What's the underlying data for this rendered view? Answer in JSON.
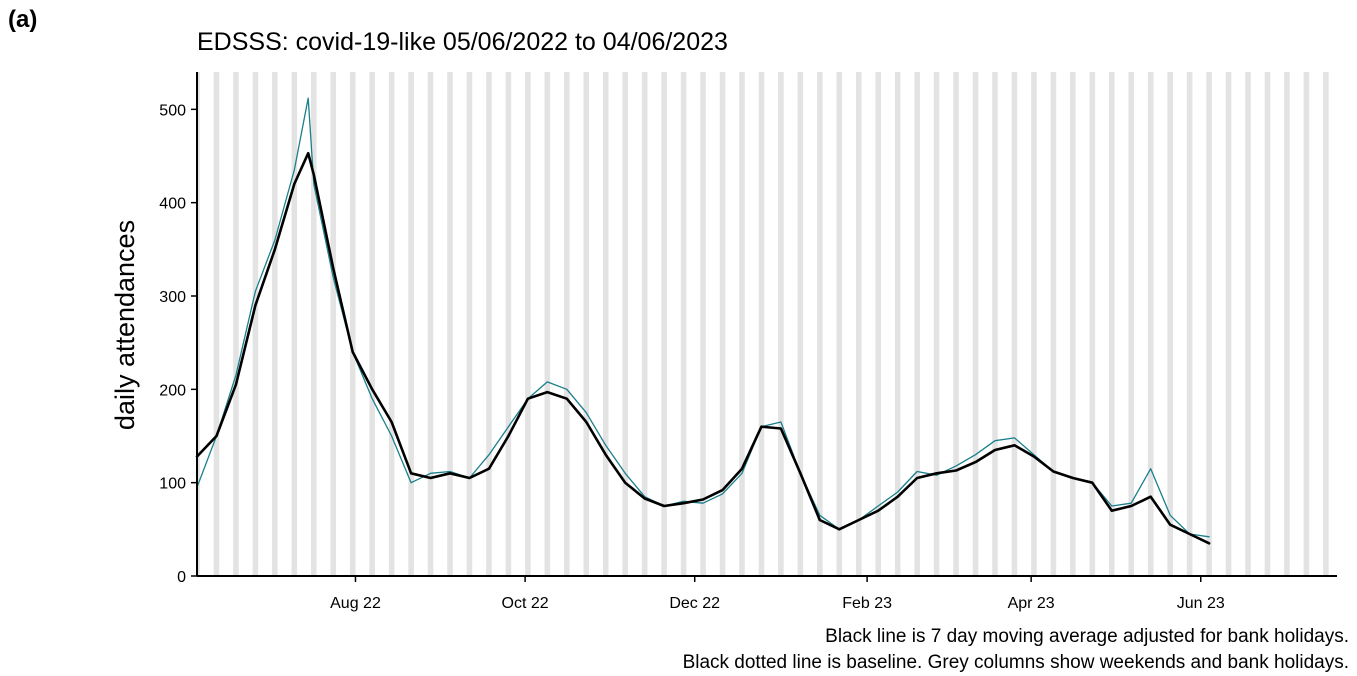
{
  "panel_label": "(a)",
  "caption": {
    "line1": "Black line is 7 day moving average adjusted for bank holidays.",
    "line2": "Black dotted line is baseline. Grey columns show weekends and bank holidays."
  },
  "colors": {
    "daily_line": "#1b7f8c",
    "average_line": "#000000",
    "weekend_column": "#e3e3e3",
    "axis": "#000000"
  },
  "chart_data": {
    "type": "line",
    "title": "EDSSS: covid-19-like 05/06/2022 to 04/06/2023",
    "xlabel": "",
    "ylabel": "daily attendances",
    "x_range": [
      "2022-06-05",
      "2023-07-20"
    ],
    "ylim": [
      0,
      540
    ],
    "y_ticks": [
      0,
      100,
      200,
      300,
      400,
      500
    ],
    "x_ticks": [
      {
        "date": "2022-08-01",
        "label": "Aug 22"
      },
      {
        "date": "2022-10-01",
        "label": "Oct 22"
      },
      {
        "date": "2022-12-01",
        "label": "Dec 22"
      },
      {
        "date": "2023-02-01",
        "label": "Feb 23"
      },
      {
        "date": "2023-04-01",
        "label": "Apr 23"
      },
      {
        "date": "2023-06-01",
        "label": "Jun 23"
      }
    ],
    "grid": false,
    "weekend_columns": {
      "first_saturday": "2022-06-04",
      "last_date": "2023-07-17"
    },
    "series": [
      {
        "style": "thin",
        "x": [
          "2022-06-05",
          "2022-06-12",
          "2022-06-19",
          "2022-06-26",
          "2022-07-03",
          "2022-07-10",
          "2022-07-15",
          "2022-07-17",
          "2022-07-24",
          "2022-07-31",
          "2022-08-07",
          "2022-08-14",
          "2022-08-21",
          "2022-08-28",
          "2022-09-04",
          "2022-09-11",
          "2022-09-18",
          "2022-09-25",
          "2022-10-02",
          "2022-10-09",
          "2022-10-16",
          "2022-10-23",
          "2022-10-30",
          "2022-11-06",
          "2022-11-13",
          "2022-11-20",
          "2022-11-27",
          "2022-12-04",
          "2022-12-11",
          "2022-12-18",
          "2022-12-25",
          "2023-01-01",
          "2023-01-08",
          "2023-01-15",
          "2023-01-22",
          "2023-01-29",
          "2023-02-05",
          "2023-02-12",
          "2023-02-19",
          "2023-02-26",
          "2023-03-05",
          "2023-03-12",
          "2023-03-19",
          "2023-03-26",
          "2023-04-02",
          "2023-04-09",
          "2023-04-16",
          "2023-04-23",
          "2023-04-30",
          "2023-05-07",
          "2023-05-14",
          "2023-05-21",
          "2023-05-28",
          "2023-06-04"
        ],
        "values": [
          95,
          150,
          215,
          305,
          360,
          435,
          512,
          420,
          320,
          240,
          190,
          150,
          100,
          110,
          112,
          105,
          130,
          160,
          190,
          208,
          200,
          175,
          140,
          110,
          85,
          75,
          80,
          78,
          88,
          110,
          160,
          165,
          110,
          65,
          50,
          60,
          75,
          90,
          112,
          108,
          118,
          130,
          145,
          148,
          130,
          112,
          105,
          100,
          75,
          78,
          115,
          65,
          45,
          42
        ]
      },
      {
        "name": "7 day moving average",
        "style": "thick",
        "x": [
          "2022-06-05",
          "2022-06-12",
          "2022-06-19",
          "2022-06-26",
          "2022-07-03",
          "2022-07-10",
          "2022-07-15",
          "2022-07-17",
          "2022-07-24",
          "2022-07-31",
          "2022-08-07",
          "2022-08-14",
          "2022-08-21",
          "2022-08-28",
          "2022-09-04",
          "2022-09-11",
          "2022-09-18",
          "2022-09-25",
          "2022-10-02",
          "2022-10-09",
          "2022-10-16",
          "2022-10-23",
          "2022-10-30",
          "2022-11-06",
          "2022-11-13",
          "2022-11-20",
          "2022-11-27",
          "2022-12-04",
          "2022-12-11",
          "2022-12-18",
          "2022-12-25",
          "2023-01-01",
          "2023-01-08",
          "2023-01-15",
          "2023-01-22",
          "2023-01-29",
          "2023-02-05",
          "2023-02-12",
          "2023-02-19",
          "2023-02-26",
          "2023-03-05",
          "2023-03-12",
          "2023-03-19",
          "2023-03-26",
          "2023-04-02",
          "2023-04-09",
          "2023-04-16",
          "2023-04-23",
          "2023-04-30",
          "2023-05-07",
          "2023-05-14",
          "2023-05-21",
          "2023-05-28",
          "2023-06-04"
        ],
        "values": [
          128,
          150,
          205,
          290,
          350,
          420,
          453,
          430,
          330,
          240,
          200,
          165,
          110,
          105,
          110,
          105,
          115,
          150,
          190,
          197,
          190,
          165,
          130,
          100,
          83,
          75,
          78,
          82,
          92,
          115,
          160,
          158,
          110,
          60,
          50,
          60,
          70,
          85,
          105,
          110,
          113,
          122,
          135,
          140,
          128,
          112,
          105,
          100,
          70,
          75,
          85,
          55,
          45,
          35
        ]
      }
    ]
  }
}
